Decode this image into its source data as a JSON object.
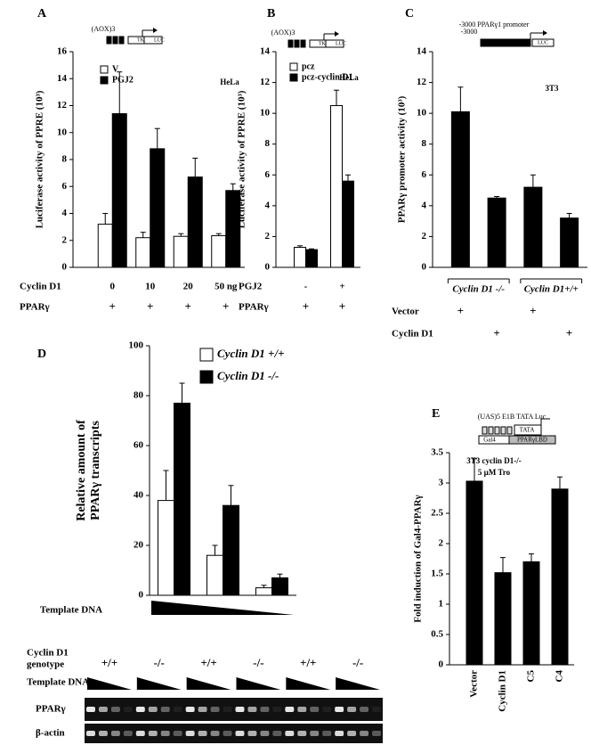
{
  "chart_data": [
    {
      "type": "bar",
      "panel": "A",
      "ylabel": [
        "Luciferase activity of PPRE (10³)"
      ],
      "ylim": [
        0,
        16
      ],
      "yticks": [
        0,
        2,
        4,
        6,
        8,
        10,
        12,
        14,
        16
      ],
      "category_title": "Cyclin D1",
      "categories": [
        "0",
        "10",
        "20",
        "50 ng"
      ],
      "rows": [
        {
          "label": "PPARγ",
          "values": [
            "+",
            "+",
            "+",
            "+"
          ]
        }
      ],
      "series": [
        {
          "name": "V",
          "color": "#ffffff",
          "values": [
            3.2,
            2.2,
            2.3,
            2.35
          ],
          "errors": [
            0.8,
            0.4,
            0.2,
            0.15
          ]
        },
        {
          "name": "PGJ2",
          "color": "#000000",
          "values": [
            11.4,
            8.8,
            6.7,
            5.7
          ],
          "errors": [
            3.1,
            1.5,
            1.4,
            0.5
          ]
        }
      ],
      "legend": true,
      "annotations": [
        "HeLa",
        "(AOX)3",
        "TK",
        "LUC"
      ]
    },
    {
      "type": "bar",
      "panel": "B",
      "ylabel": [
        "Luciferase activity of PPRE (10³)"
      ],
      "ylim": [
        0,
        14
      ],
      "yticks": [
        0,
        2,
        4,
        6,
        8,
        10,
        12,
        14
      ],
      "category_title": "PGJ2",
      "categories": [
        "-",
        "+"
      ],
      "rows": [
        {
          "label": "PPARγ",
          "values": [
            "+",
            "+"
          ]
        }
      ],
      "series": [
        {
          "name": "pcz",
          "color": "#ffffff",
          "values": [
            1.3,
            10.5
          ],
          "errors": [
            0.1,
            1.0
          ]
        },
        {
          "name": "pcz-cyclin D1",
          "color": "#000000",
          "values": [
            1.15,
            5.6
          ],
          "errors": [
            0.05,
            0.4
          ]
        }
      ],
      "legend": true,
      "annotations": [
        "HeLa",
        "(AOX)3",
        "TK",
        "LUC"
      ]
    },
    {
      "type": "bar",
      "panel": "C",
      "ylabel": [
        "PPARγ promoter activity (10³)"
      ],
      "ylim": [
        0,
        14
      ],
      "yticks": [
        0,
        2,
        4,
        6,
        8,
        10,
        12,
        14
      ],
      "categories": [
        null,
        null,
        null,
        null
      ],
      "groups": [
        "Cyclin D1 -/-",
        "Cyclin D1+/+"
      ],
      "rows": [
        {
          "label": "Vector",
          "values": [
            "+",
            null,
            "+",
            null
          ]
        },
        {
          "label": "Cyclin D1",
          "values": [
            null,
            "+",
            null,
            "+"
          ]
        }
      ],
      "series": [
        {
          "name": null,
          "color": "#000000",
          "values": [
            10.1,
            4.5,
            5.2,
            3.2
          ],
          "errors": [
            1.6,
            0.1,
            0.8,
            0.3
          ]
        }
      ],
      "legend": false,
      "annotations": [
        "3T3",
        "-3000 PPARγ1 promoter",
        "-3000",
        "LUC"
      ]
    },
    {
      "type": "bar",
      "panel": "D",
      "ylabel": [
        "Relative amount of",
        "PPARγ transcripts"
      ],
      "ylim": [
        0,
        100
      ],
      "yticks": [
        0,
        20,
        40,
        60,
        80,
        100
      ],
      "categories": [
        null,
        null,
        null
      ],
      "series": [
        {
          "name": "Cyclin D1 +/+",
          "color": "#ffffff",
          "values": [
            38,
            16,
            3
          ],
          "errors": [
            12,
            4,
            1
          ]
        },
        {
          "name": "Cyclin D1 -/-",
          "color": "#000000",
          "values": [
            77,
            36,
            7
          ],
          "errors": [
            8,
            8,
            1.5
          ]
        }
      ],
      "legend": true,
      "annotations": [
        "Template DNA"
      ]
    },
    {
      "type": "bar",
      "panel": "E",
      "ylabel": [
        "Fold induction of Gal4-PPARγ"
      ],
      "ylim": [
        0,
        3.5
      ],
      "yticks": [
        0,
        0.5,
        1,
        1.5,
        2,
        2.5,
        3,
        3.5
      ],
      "categories": [
        "Vector",
        "Cyclin D1",
        "C5",
        "C4"
      ],
      "series": [
        {
          "name": null,
          "color": "#000000",
          "values": [
            3.03,
            1.52,
            1.7,
            2.9
          ],
          "errors": [
            0.37,
            0.25,
            0.13,
            0.2
          ]
        }
      ],
      "legend": false,
      "annotations": [
        "3T3 cyclin D1-/-",
        "5 µM Tro",
        "(UAS)5 E1B TATA Luc",
        "TATA",
        "Gal4",
        "PPARγLBD"
      ]
    }
  ],
  "gel": {
    "genotype_label": [
      "Cyclin D1",
      "genotype"
    ],
    "genotypes": [
      "+/+",
      "-/-",
      "+/+",
      "-/-",
      "+/+",
      "-/-"
    ],
    "template_label": "Template DNA",
    "lanes": [
      "PPARγ",
      "β-actin"
    ]
  }
}
